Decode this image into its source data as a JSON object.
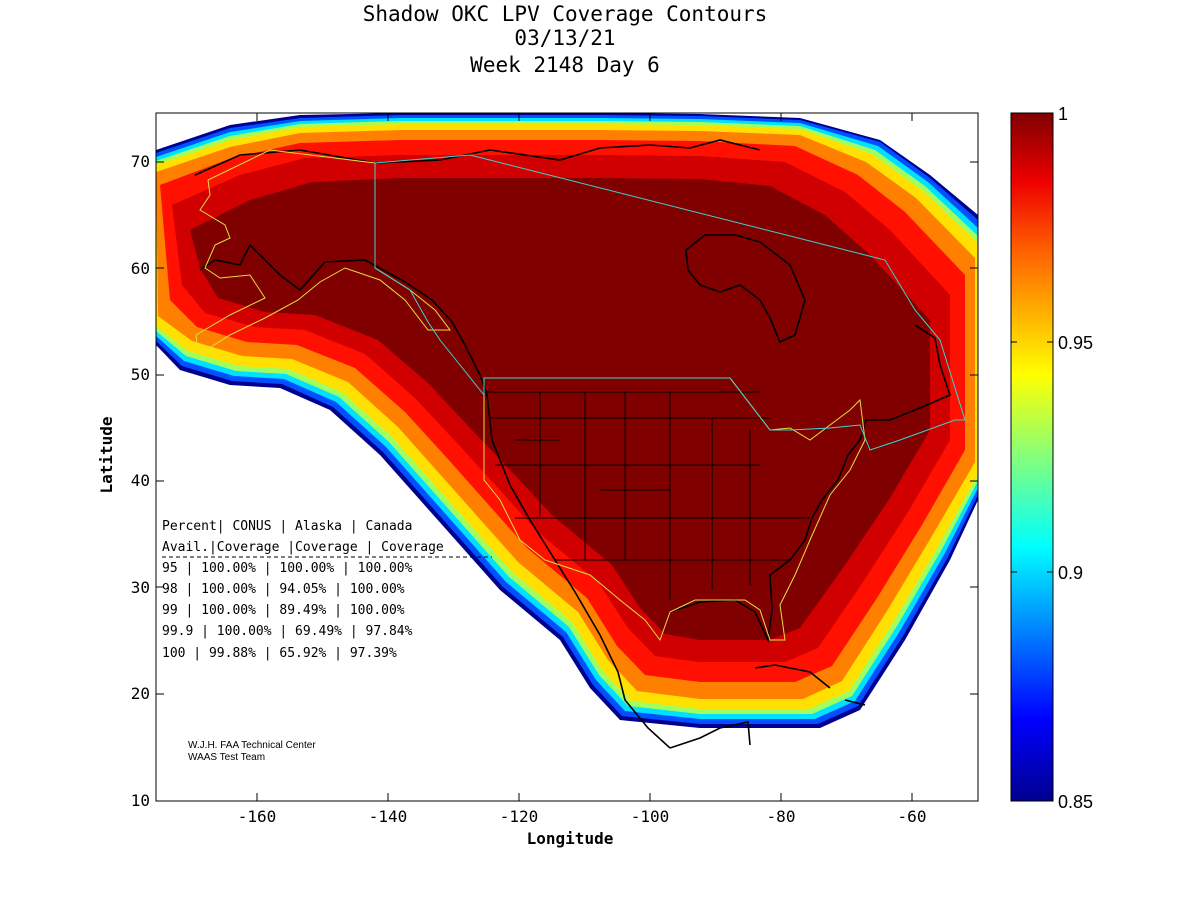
{
  "title": {
    "line1": "Shadow OKC LPV Coverage Contours",
    "line2": "03/13/21",
    "line3": "Week 2148 Day 6"
  },
  "axes": {
    "xlabel": "Longitude",
    "ylabel": "Latitude",
    "xlim": [
      -175,
      -50
    ],
    "ylim": [
      10,
      75
    ],
    "xticks": [
      -160,
      -140,
      -120,
      -100,
      -80,
      -60
    ],
    "yticks": [
      10,
      20,
      30,
      40,
      50,
      60,
      70
    ]
  },
  "colorbar": {
    "min": 0.85,
    "max": 1,
    "ticks": [
      "1",
      "0.95",
      "0.9",
      "0.85"
    ],
    "colors": [
      "#00008f",
      "#0000ff",
      "#0080ff",
      "#00ffff",
      "#80ff80",
      "#ffff00",
      "#ff8000",
      "#ff0000",
      "#800000"
    ]
  },
  "coverage_table": {
    "header1": "Percent| CONUS   | Alaska  | Canada",
    "header2": " Avail.|Coverage |Coverage | Coverage",
    "rows": [
      "  95   | 100.00%  | 100.00% | 100.00%",
      "  98   | 100.00%  | 94.05% | 100.00%",
      "  99   | 100.00%  | 89.49% | 100.00%",
      "99.9   | 100.00%  | 69.49% | 97.84%",
      " 100   | 99.88%  | 65.92% | 97.39%"
    ]
  },
  "credits": {
    "line1": "W.J.H. FAA Technical Center",
    "line2": "WAAS Test Team"
  }
}
